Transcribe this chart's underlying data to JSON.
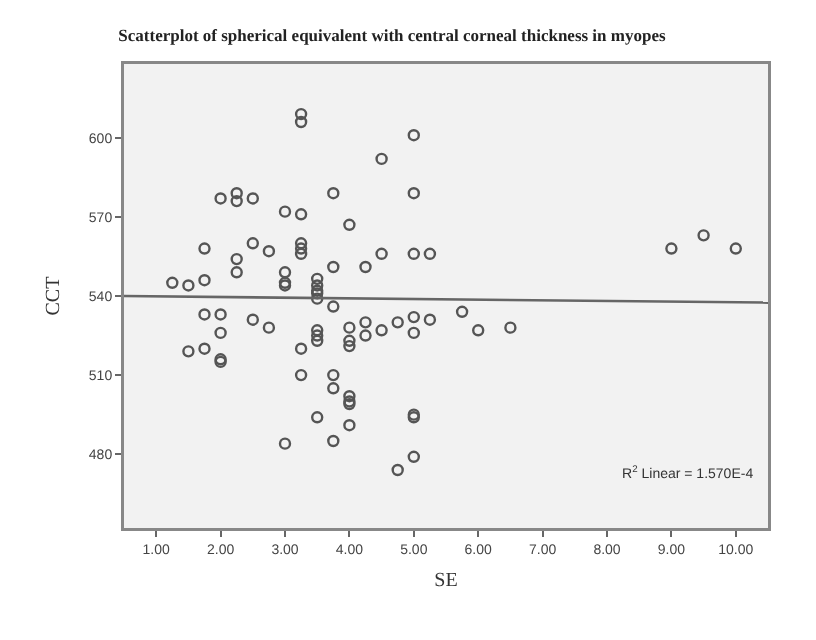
{
  "chart_data": {
    "type": "scatter",
    "title": "Scatterplot of spherical equivalent with central corneal thickness in myopes",
    "xlabel": "SE",
    "ylabel": "CCT",
    "xlim": [
      0.5,
      10.5
    ],
    "xticks": [
      {
        "value": 1,
        "label": "1.00"
      },
      {
        "value": 2,
        "label": "2.00"
      },
      {
        "value": 3,
        "label": "3.00"
      },
      {
        "value": 4,
        "label": "4.00"
      },
      {
        "value": 5,
        "label": "5.00"
      },
      {
        "value": 6,
        "label": "6.00"
      },
      {
        "value": 7,
        "label": "7.00"
      },
      {
        "value": 8,
        "label": "8.00"
      },
      {
        "value": 9,
        "label": "9.00"
      },
      {
        "value": 10,
        "label": "10.00"
      }
    ],
    "ylim": [
      452,
      628
    ],
    "yticks": [
      480,
      510,
      540,
      570,
      600
    ],
    "grid": false,
    "marker": "circle",
    "annotations": [
      "R$^{2}$ Linear = 1.570E-4"
    ],
    "series": [
      {
        "color": "#555555",
        "x": [
          3.25,
          3.25,
          5,
          4.5,
          5,
          2,
          2.25,
          2.25,
          2.5,
          3.75,
          3,
          3.25,
          4,
          1.75,
          2.25,
          2.5,
          2.75,
          3.25,
          3.25,
          3.25,
          3.75,
          4.25,
          4.5,
          5,
          5.25,
          2.25,
          3,
          3,
          3,
          1.25,
          1.5,
          1.75,
          3.5,
          3.5,
          3.5,
          3.5,
          3.5,
          3.75,
          1.75,
          2,
          2.5,
          2.75,
          2,
          3.5,
          3.5,
          3.5,
          4,
          4,
          4,
          4.25,
          4.25,
          4.5,
          4.75,
          5,
          5,
          5.25,
          1.5,
          1.75,
          2,
          2,
          3.25,
          3.25,
          3.75,
          3.75,
          4,
          4,
          4,
          3.5,
          4,
          3,
          3.75,
          5,
          5,
          5,
          4.75,
          9,
          9.5,
          10,
          5.75,
          6,
          6.5
        ],
        "values": [
          609,
          606,
          601,
          592,
          579,
          577,
          579,
          576,
          577,
          579,
          572,
          571,
          567,
          558,
          554,
          560,
          557,
          560,
          558,
          556,
          551,
          551,
          556,
          556,
          556,
          549,
          549,
          545,
          544,
          545,
          544,
          546,
          546.5,
          544,
          542,
          541,
          539,
          536,
          533,
          533,
          531,
          528,
          526,
          527,
          525,
          523,
          528,
          523,
          521,
          530,
          525,
          527,
          530,
          532,
          526,
          531,
          519,
          520,
          516,
          515,
          520,
          510,
          510,
          505,
          502,
          500,
          499,
          494,
          491,
          484,
          485,
          495,
          494,
          479,
          474,
          558,
          563,
          558,
          534,
          527,
          528
        ]
      },
      {
        "type": "line",
        "color": "#666666",
        "marker": "none",
        "x": [
          0.5,
          10.5
        ],
        "values": [
          540,
          537.5
        ]
      }
    ]
  }
}
